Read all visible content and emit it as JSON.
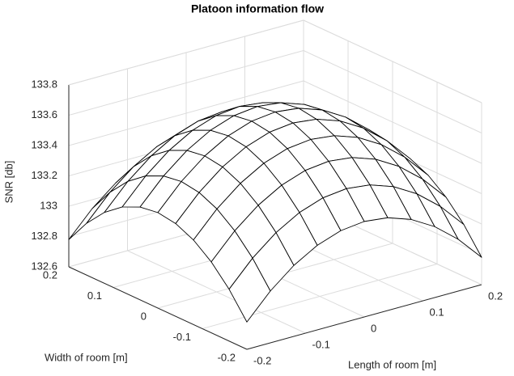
{
  "chart_data": {
    "type": "surface",
    "title": "Platoon information flow",
    "xlabel": "Length of room [m]",
    "ylabel": "Width of room [m]",
    "zlabel": "SNR [db]",
    "x": [
      -0.2,
      -0.16,
      -0.12,
      -0.08,
      -0.04,
      0,
      0.04,
      0.08,
      0.12,
      0.16,
      0.2
    ],
    "y": [
      -0.2,
      -0.16,
      -0.12,
      -0.08,
      -0.04,
      0,
      0.04,
      0.08,
      0.12,
      0.16,
      0.2
    ],
    "z": [
      [
        132.78,
        132.942,
        133.068,
        133.158,
        133.212,
        133.23,
        133.212,
        133.158,
        133.068,
        132.942,
        132.78
      ],
      [
        132.942,
        133.104,
        133.23,
        133.32,
        133.374,
        133.392,
        133.374,
        133.32,
        133.23,
        133.104,
        132.942
      ],
      [
        133.068,
        133.23,
        133.356,
        133.446,
        133.5,
        133.518,
        133.5,
        133.446,
        133.356,
        133.23,
        133.068
      ],
      [
        133.158,
        133.32,
        133.446,
        133.536,
        133.59,
        133.608,
        133.59,
        133.536,
        133.446,
        133.32,
        133.158
      ],
      [
        133.212,
        133.374,
        133.5,
        133.59,
        133.644,
        133.662,
        133.644,
        133.59,
        133.5,
        133.374,
        133.212
      ],
      [
        133.23,
        133.392,
        133.518,
        133.608,
        133.662,
        133.68,
        133.662,
        133.608,
        133.518,
        133.392,
        133.23
      ],
      [
        133.212,
        133.374,
        133.5,
        133.59,
        133.644,
        133.662,
        133.644,
        133.59,
        133.5,
        133.374,
        133.212
      ],
      [
        133.158,
        133.32,
        133.446,
        133.536,
        133.59,
        133.608,
        133.59,
        133.536,
        133.446,
        133.32,
        133.158
      ],
      [
        133.068,
        133.23,
        133.356,
        133.446,
        133.5,
        133.518,
        133.5,
        133.446,
        133.356,
        133.23,
        133.068
      ],
      [
        132.942,
        133.104,
        133.23,
        133.32,
        133.374,
        133.392,
        133.374,
        133.32,
        133.23,
        133.104,
        132.942
      ],
      [
        132.78,
        132.942,
        133.068,
        133.158,
        133.212,
        133.23,
        133.212,
        133.158,
        133.068,
        132.942,
        132.78
      ]
    ],
    "xlim": [
      -0.2,
      0.2
    ],
    "ylim": [
      -0.2,
      0.2
    ],
    "zlim": [
      132.6,
      133.8
    ],
    "xticks": [
      -0.2,
      -0.1,
      0,
      0.1,
      0.2
    ],
    "yticks": [
      -0.2,
      -0.1,
      0,
      0.1,
      0.2
    ],
    "zticks": [
      132.6,
      132.8,
      133,
      133.2,
      133.4,
      133.6,
      133.8
    ],
    "grid": true
  }
}
